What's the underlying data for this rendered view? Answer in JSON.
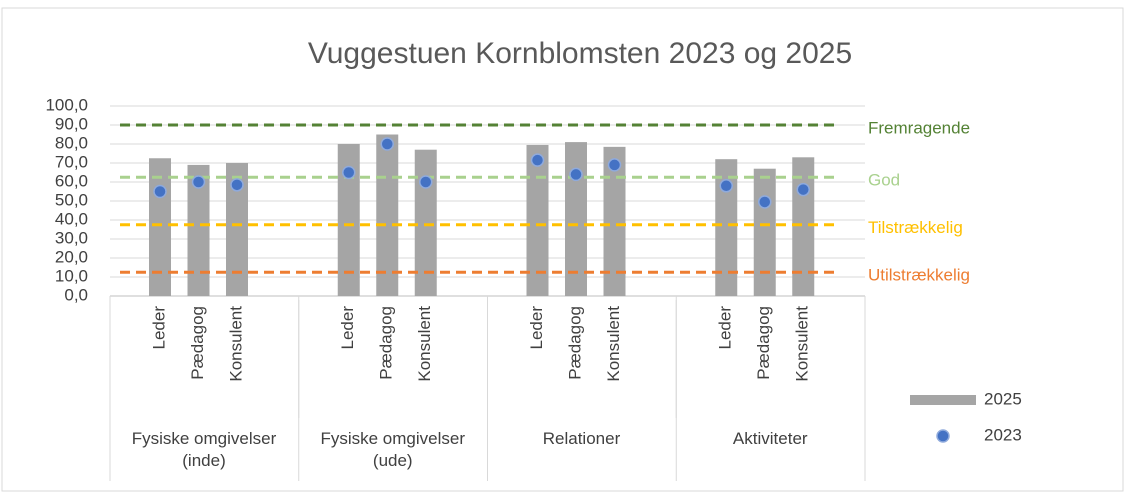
{
  "chart_data": {
    "type": "bar",
    "title": "Vuggestuen Kornblomsten 2023 og 2025",
    "category_groups": [
      "Fysiske omgivelser (inde)",
      "Fysiske omgivelser (ude)",
      "Relationer",
      "Aktiviteter"
    ],
    "categories": [
      "Leder",
      "Pædagog",
      "Konsulent",
      "Leder",
      "Pædagog",
      "Konsulent",
      "Leder",
      "Pædagog",
      "Konsulent",
      "Leder",
      "Pædagog",
      "Konsulent"
    ],
    "series": [
      {
        "name": "2025",
        "type": "bar",
        "color": "#a5a5a5",
        "values": [
          72.5,
          69,
          70,
          80,
          85,
          77,
          79.5,
          81,
          78.5,
          72,
          67,
          73
        ]
      },
      {
        "name": "2023",
        "type": "scatter",
        "color": "#4472c4",
        "values": [
          55,
          60,
          58.5,
          65,
          80,
          60,
          71.5,
          64,
          69,
          58,
          49.5,
          56
        ]
      }
    ],
    "reference_lines": [
      {
        "name": "Fremragende",
        "value": 90,
        "color": "#548235"
      },
      {
        "name": "God",
        "value": 62.5,
        "color": "#a9d18e"
      },
      {
        "name": "Tilstrækkelig",
        "value": 37.5,
        "color": "#ffc000"
      },
      {
        "name": "Utilstrækkelig",
        "value": 12.5,
        "color": "#ed7d31"
      }
    ],
    "ylim": [
      0,
      100
    ],
    "yticks": [
      {
        "value": 0,
        "label": "0,0"
      },
      {
        "value": 10,
        "label": "10,0"
      },
      {
        "value": 20,
        "label": "20,0"
      },
      {
        "value": 30,
        "label": "30,0"
      },
      {
        "value": 40,
        "label": "40,0"
      },
      {
        "value": 50,
        "label": "50,0"
      },
      {
        "value": 60,
        "label": "60,0"
      },
      {
        "value": 70,
        "label": "70,0"
      },
      {
        "value": 80,
        "label": "80,0"
      },
      {
        "value": 90,
        "label": "90,0"
      },
      {
        "value": 100,
        "label": "100,0"
      }
    ],
    "grid": true
  }
}
